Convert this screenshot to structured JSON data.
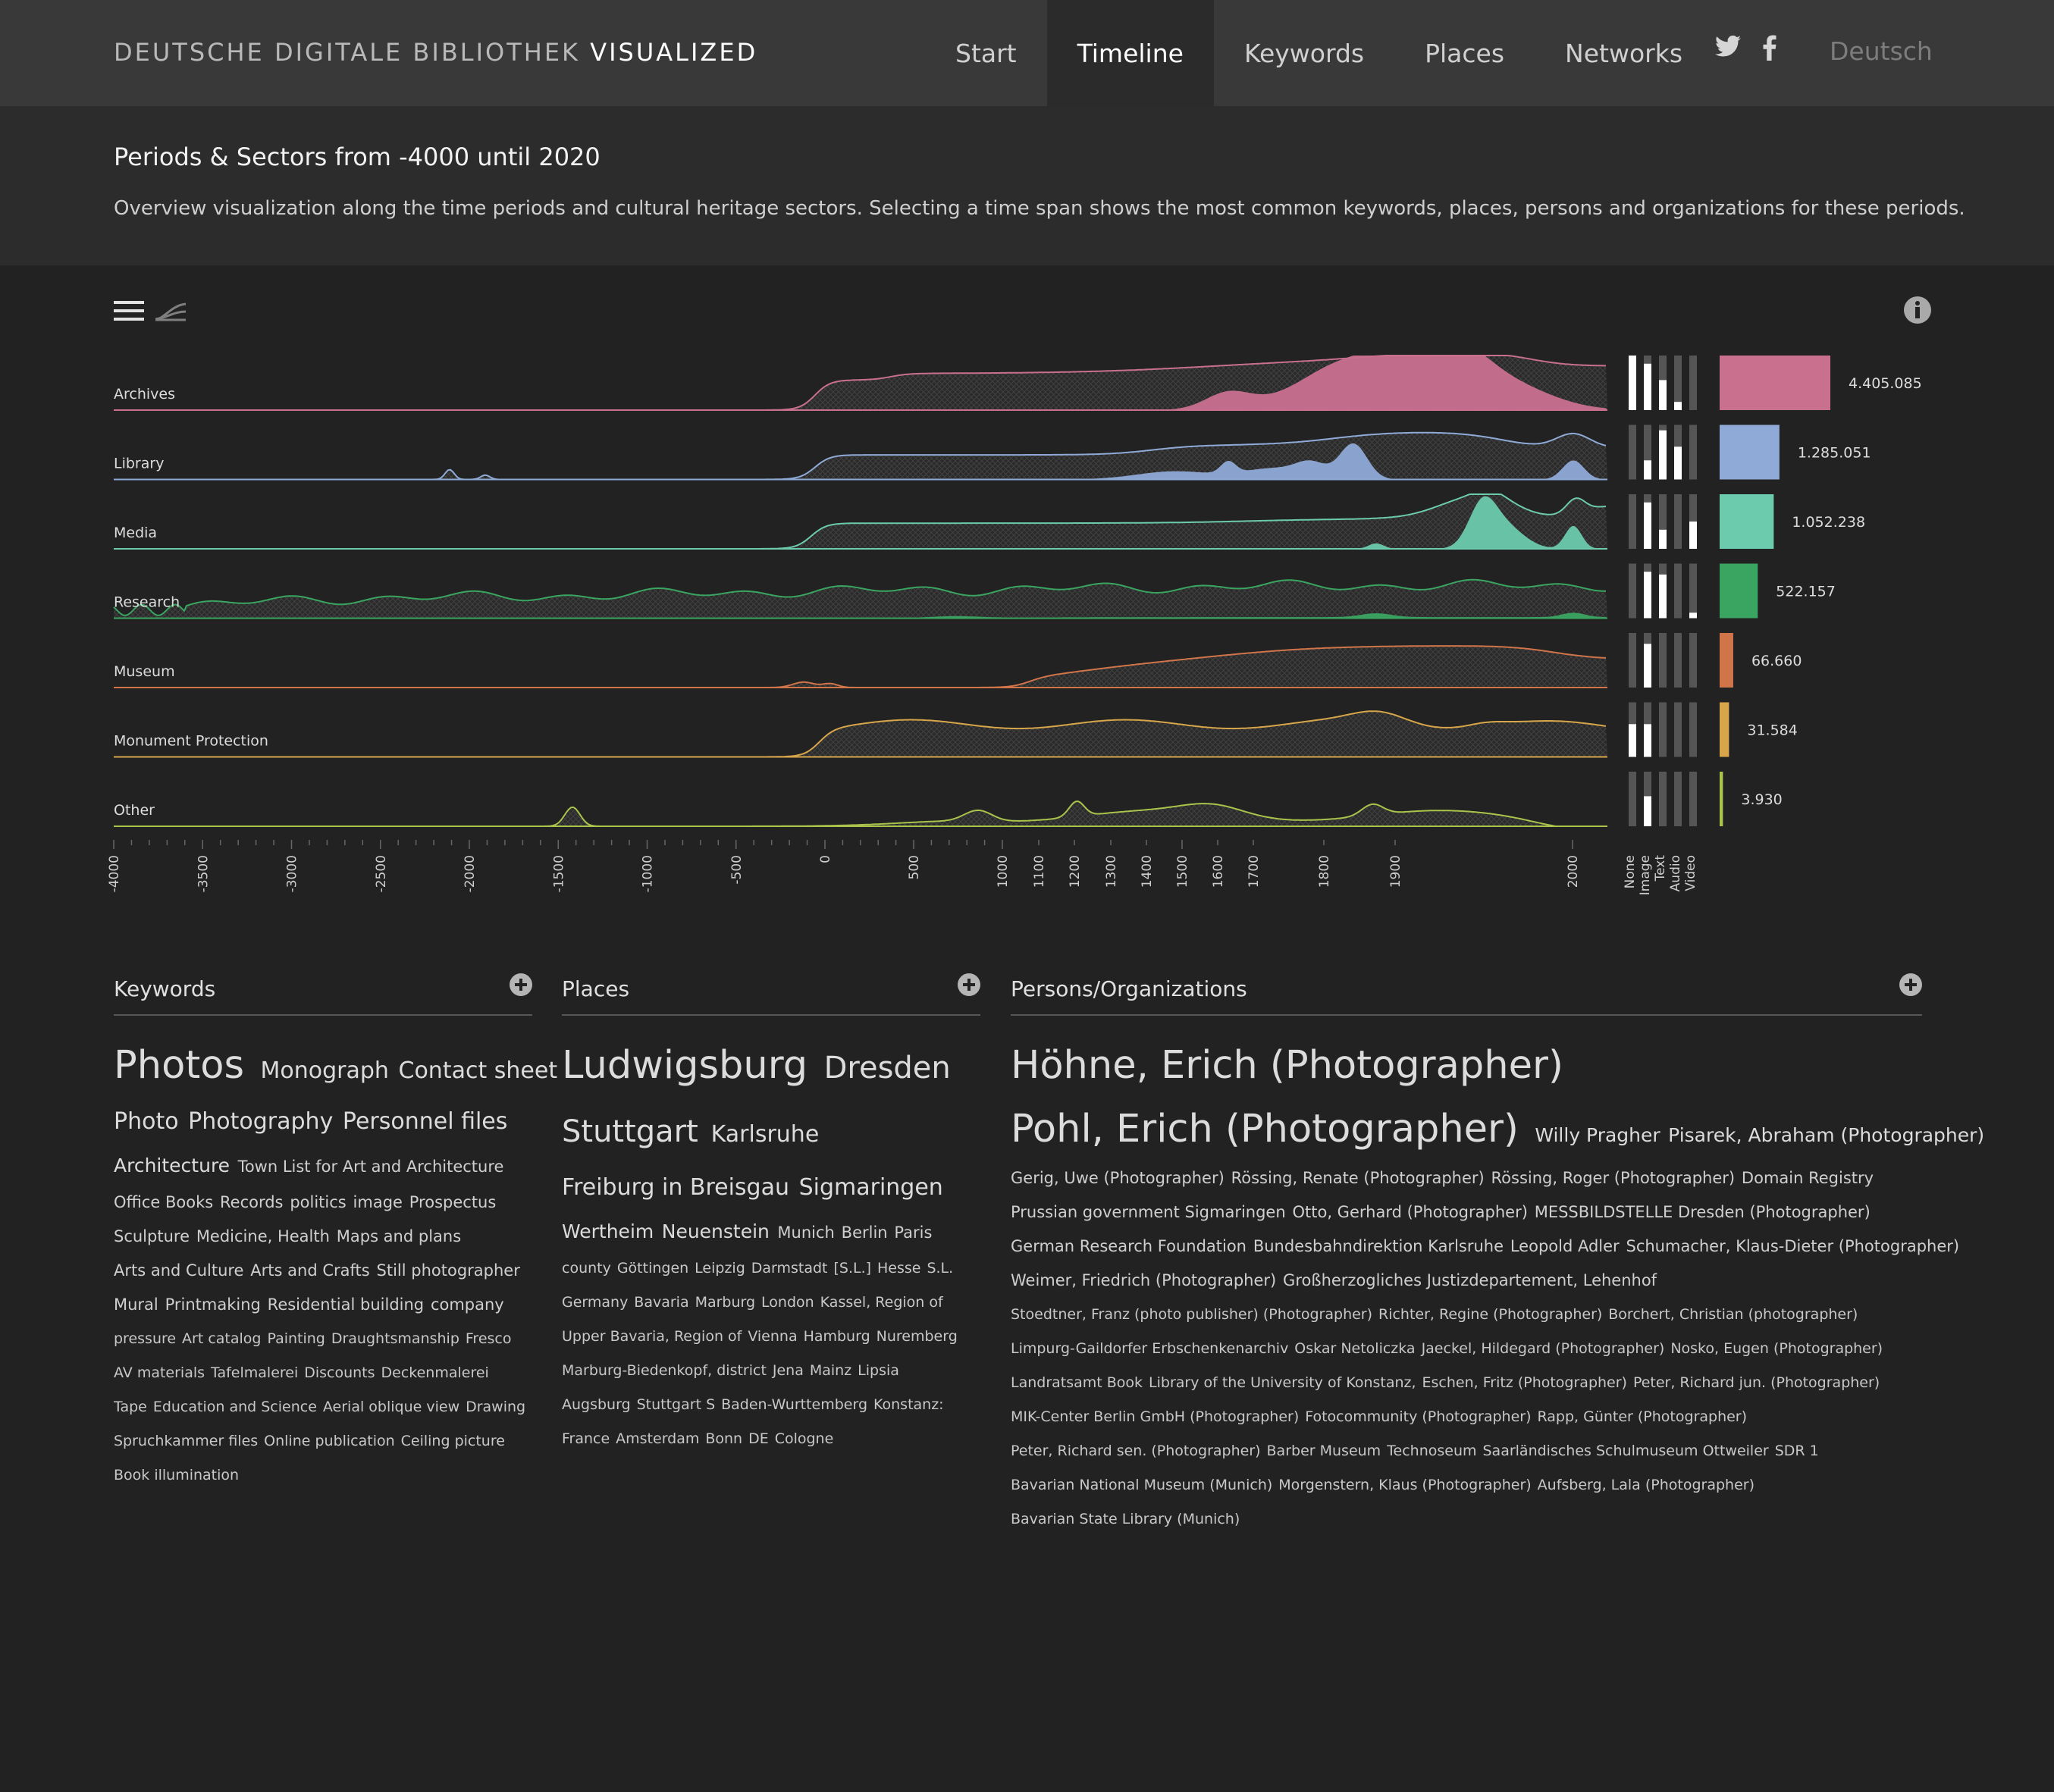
{
  "header": {
    "brand_prefix": "DEUTSCHE DIGITALE BIBLIOTHEK",
    "brand_suffix": "VISUALIZED",
    "nav": [
      "Start",
      "Timeline",
      "Keywords",
      "Places",
      "Networks"
    ],
    "active_nav": "Timeline",
    "language": "Deutsch",
    "social_icons": [
      "twitter-icon",
      "facebook-icon"
    ]
  },
  "intro": {
    "title": "Periods & Sectors from -4000 until 2020",
    "text": "Overview visualization along the time periods and cultural heritage sectors. Selecting a time span shows the most common keywords, places, persons and organizations for these periods."
  },
  "toolbar": {
    "icons": [
      "menu-icon",
      "stream-toggle-icon",
      "info-icon"
    ]
  },
  "chart_data": {
    "type": "area",
    "title": "Periods & Sectors from -4000 until 2020",
    "x_range": [
      -4000,
      2020
    ],
    "x_ticks": [
      "-4000",
      "-3500",
      "-3000",
      "-2500",
      "-2000",
      "-1500",
      "-1000",
      "-500",
      "0",
      "500",
      "1000",
      "1100",
      "1200",
      "1300",
      "1400",
      "1500",
      "1600",
      "1700",
      "1800",
      "1900",
      "2000"
    ],
    "media_types": [
      "None",
      "Image",
      "Text",
      "Audio",
      "Video"
    ],
    "series": [
      {
        "name": "Archives",
        "color": "#c9708f",
        "total": "4.405.085",
        "total_value": 4405085,
        "media": [
          1.0,
          0.85,
          0.55,
          0.15,
          0.0
        ]
      },
      {
        "name": "Library",
        "color": "#8faad7",
        "total": "1.285.051",
        "total_value": 1285051,
        "media": [
          0.0,
          0.35,
          0.9,
          0.6,
          0.0
        ]
      },
      {
        "name": "Media",
        "color": "#6ccaad",
        "total": "1.052.238",
        "total_value": 1052238,
        "media": [
          0.0,
          0.85,
          0.35,
          0.0,
          0.5
        ]
      },
      {
        "name": "Research",
        "color": "#3aa461",
        "total": "522.157",
        "total_value": 522157,
        "media": [
          0.0,
          0.85,
          0.8,
          0.0,
          0.1
        ]
      },
      {
        "name": "Museum",
        "color": "#d0744a",
        "total": "66.660",
        "total_value": 66660,
        "media": [
          0.0,
          0.8,
          0.0,
          0.0,
          0.0
        ]
      },
      {
        "name": "Monument Protection",
        "color": "#d8a64a",
        "total": "31.584",
        "total_value": 31584,
        "media": [
          0.6,
          0.6,
          0.0,
          0.0,
          0.0
        ]
      },
      {
        "name": "Other",
        "color": "#a9c34b",
        "total": "3.930",
        "total_value": 3930,
        "media": [
          0.0,
          0.55,
          0.0,
          0.0,
          0.0
        ]
      }
    ]
  },
  "keywords": {
    "title": "Keywords",
    "lines": [
      [
        {
          "t": "Photos",
          "s": 1
        },
        {
          "t": "Monograph",
          "s": 3
        },
        {
          "t": "Contact sheet",
          "s": 3
        }
      ],
      [
        {
          "t": "Photo",
          "s": 3
        },
        {
          "t": "Photography",
          "s": 3
        },
        {
          "t": "Personnel files",
          "s": 3
        }
      ],
      [
        {
          "t": "Architecture",
          "s": 4
        },
        {
          "t": "Town List for Art and Architecture",
          "s": 5
        }
      ],
      [
        {
          "t": "Office Books",
          "s": 5
        },
        {
          "t": "Records",
          "s": 5
        },
        {
          "t": "politics",
          "s": 5
        },
        {
          "t": "image",
          "s": 5
        },
        {
          "t": "Prospectus",
          "s": 5
        }
      ],
      [
        {
          "t": "Sculpture",
          "s": 5
        },
        {
          "t": "Medicine, Health",
          "s": 5
        },
        {
          "t": "Maps and plans",
          "s": 5
        }
      ],
      [
        {
          "t": "Arts and Culture",
          "s": 5
        },
        {
          "t": "Arts and Crafts",
          "s": 5
        },
        {
          "t": "Still photographer",
          "s": 5
        }
      ],
      [
        {
          "t": "Mural",
          "s": 5
        },
        {
          "t": "Printmaking",
          "s": 5
        },
        {
          "t": "Residential building",
          "s": 5
        },
        {
          "t": "company",
          "s": 5
        }
      ],
      [
        {
          "t": "pressure",
          "s": 6
        },
        {
          "t": "Art catalog",
          "s": 6
        },
        {
          "t": "Painting",
          "s": 6
        },
        {
          "t": "Draughtsmanship",
          "s": 6
        },
        {
          "t": "Fresco",
          "s": 6
        }
      ],
      [
        {
          "t": "AV materials",
          "s": 6
        },
        {
          "t": "Tafelmalerei",
          "s": 6
        },
        {
          "t": "Discounts",
          "s": 6
        },
        {
          "t": "Deckenmalerei",
          "s": 6
        }
      ],
      [
        {
          "t": "Tape",
          "s": 6
        },
        {
          "t": "Education and Science",
          "s": 6
        },
        {
          "t": "Aerial oblique view",
          "s": 6
        },
        {
          "t": "Drawing",
          "s": 6
        }
      ],
      [
        {
          "t": "Spruchkammer files",
          "s": 6
        },
        {
          "t": "Online publication",
          "s": 6
        },
        {
          "t": "Ceiling picture",
          "s": 6
        }
      ],
      [
        {
          "t": "Book illumination",
          "s": 6
        }
      ]
    ]
  },
  "places": {
    "title": "Places",
    "lines": [
      [
        {
          "t": "Ludwigsburg",
          "s": 1
        },
        {
          "t": "Dresden",
          "s": 2
        }
      ],
      [
        {
          "t": "Stuttgart",
          "s": 2
        },
        {
          "t": "Karlsruhe",
          "s": 3
        }
      ],
      [
        {
          "t": "Freiburg in Breisgau",
          "s": 3
        },
        {
          "t": "Sigmaringen",
          "s": 3
        }
      ],
      [
        {
          "t": "Wertheim",
          "s": 4
        },
        {
          "t": "Neuenstein",
          "s": 4
        },
        {
          "t": "Munich",
          "s": 5
        },
        {
          "t": "Berlin",
          "s": 5
        },
        {
          "t": "Paris",
          "s": 5
        }
      ],
      [
        {
          "t": "county",
          "s": 6
        },
        {
          "t": "Göttingen",
          "s": 6
        },
        {
          "t": "Leipzig",
          "s": 6
        },
        {
          "t": "Darmstadt",
          "s": 6
        },
        {
          "t": "[S.L.]",
          "s": 6
        },
        {
          "t": "Hesse",
          "s": 6
        },
        {
          "t": "S.L.",
          "s": 6
        }
      ],
      [
        {
          "t": "Germany",
          "s": 6
        },
        {
          "t": "Bavaria",
          "s": 6
        },
        {
          "t": "Marburg",
          "s": 6
        },
        {
          "t": "London",
          "s": 6
        },
        {
          "t": "Kassel, Region of",
          "s": 6
        }
      ],
      [
        {
          "t": "Upper Bavaria, Region of",
          "s": 6
        },
        {
          "t": "Vienna",
          "s": 6
        },
        {
          "t": "Hamburg",
          "s": 6
        },
        {
          "t": "Nuremberg",
          "s": 6
        }
      ],
      [
        {
          "t": "Marburg-Biedenkopf, district",
          "s": 6
        },
        {
          "t": "Jena",
          "s": 6
        },
        {
          "t": "Mainz",
          "s": 6
        },
        {
          "t": "Lipsia",
          "s": 6
        }
      ],
      [
        {
          "t": "Augsburg",
          "s": 6
        },
        {
          "t": "Stuttgart S",
          "s": 6
        },
        {
          "t": "Baden-Wurttemberg",
          "s": 6
        },
        {
          "t": "Konstanz:",
          "s": 6
        }
      ],
      [
        {
          "t": "France",
          "s": 6
        },
        {
          "t": "Amsterdam",
          "s": 6
        },
        {
          "t": "Bonn",
          "s": 6
        },
        {
          "t": "DE",
          "s": 6
        },
        {
          "t": "Cologne",
          "s": 6
        }
      ]
    ]
  },
  "persons": {
    "title": "Persons/Organizations",
    "lines": [
      [
        {
          "t": "Höhne, Erich (Photographer)",
          "s": 1
        }
      ],
      [
        {
          "t": "Pohl, Erich (Photographer)",
          "s": 1
        },
        {
          "t": "Willy Pragher",
          "s": 4
        },
        {
          "t": "Pisarek, Abraham (Photographer)",
          "s": 4
        }
      ],
      [
        {
          "t": "Gerig, Uwe (Photographer)",
          "s": 5
        },
        {
          "t": "Rössing, Renate (Photographer)",
          "s": 5
        },
        {
          "t": "Rössing, Roger (Photographer)",
          "s": 5
        },
        {
          "t": "Domain Registry",
          "s": 5
        }
      ],
      [
        {
          "t": "Prussian government Sigmaringen",
          "s": 5
        },
        {
          "t": "Otto, Gerhard (Photographer)",
          "s": 5
        },
        {
          "t": "MESSBILDSTELLE Dresden (Photographer)",
          "s": 5
        }
      ],
      [
        {
          "t": "German Research Foundation",
          "s": 5
        },
        {
          "t": "Bundesbahndirektion Karlsruhe",
          "s": 5
        },
        {
          "t": "Leopold Adler",
          "s": 5
        },
        {
          "t": "Schumacher, Klaus-Dieter (Photographer)",
          "s": 5
        }
      ],
      [
        {
          "t": "Weimer, Friedrich (Photographer)",
          "s": 5
        },
        {
          "t": "Großherzogliches Justizdepartement, Lehenhof",
          "s": 5
        }
      ],
      [
        {
          "t": "Stoedtner, Franz (photo publisher) (Photographer)",
          "s": 6
        },
        {
          "t": "Richter, Regine (Photographer)",
          "s": 6
        },
        {
          "t": "Borchert, Christian (photographer)",
          "s": 6
        }
      ],
      [
        {
          "t": "Limpurg-Gaildorfer Erbschenkenarchiv",
          "s": 6
        },
        {
          "t": "Oskar Netoliczka",
          "s": 6
        },
        {
          "t": "Jaeckel, Hildegard (Photographer)",
          "s": 6
        },
        {
          "t": "Nosko, Eugen (Photographer)",
          "s": 6
        }
      ],
      [
        {
          "t": "Landratsamt Book",
          "s": 6
        },
        {
          "t": "Library of the University of Konstanz,",
          "s": 6
        },
        {
          "t": "Eschen, Fritz (Photographer)",
          "s": 6
        },
        {
          "t": "Peter, Richard jun. (Photographer)",
          "s": 6
        }
      ],
      [
        {
          "t": "MIK-Center Berlin GmbH (Photographer)",
          "s": 6
        },
        {
          "t": "Fotocommunity (Photographer)",
          "s": 6
        },
        {
          "t": "Rapp, Günter (Photographer)",
          "s": 6
        }
      ],
      [
        {
          "t": "Peter, Richard sen. (Photographer)",
          "s": 6
        },
        {
          "t": "Barber Museum",
          "s": 6
        },
        {
          "t": "Technoseum",
          "s": 6
        },
        {
          "t": "Saarländisches Schulmuseum Ottweiler",
          "s": 6
        },
        {
          "t": "SDR 1",
          "s": 6
        }
      ],
      [
        {
          "t": "Bavarian National Museum (Munich)",
          "s": 6
        },
        {
          "t": "Morgenstern, Klaus (Photographer)",
          "s": 6
        },
        {
          "t": "Aufsberg, Lala (Photographer)",
          "s": 6
        }
      ],
      [
        {
          "t": "Bavarian State Library (Munich)",
          "s": 6
        }
      ]
    ]
  }
}
